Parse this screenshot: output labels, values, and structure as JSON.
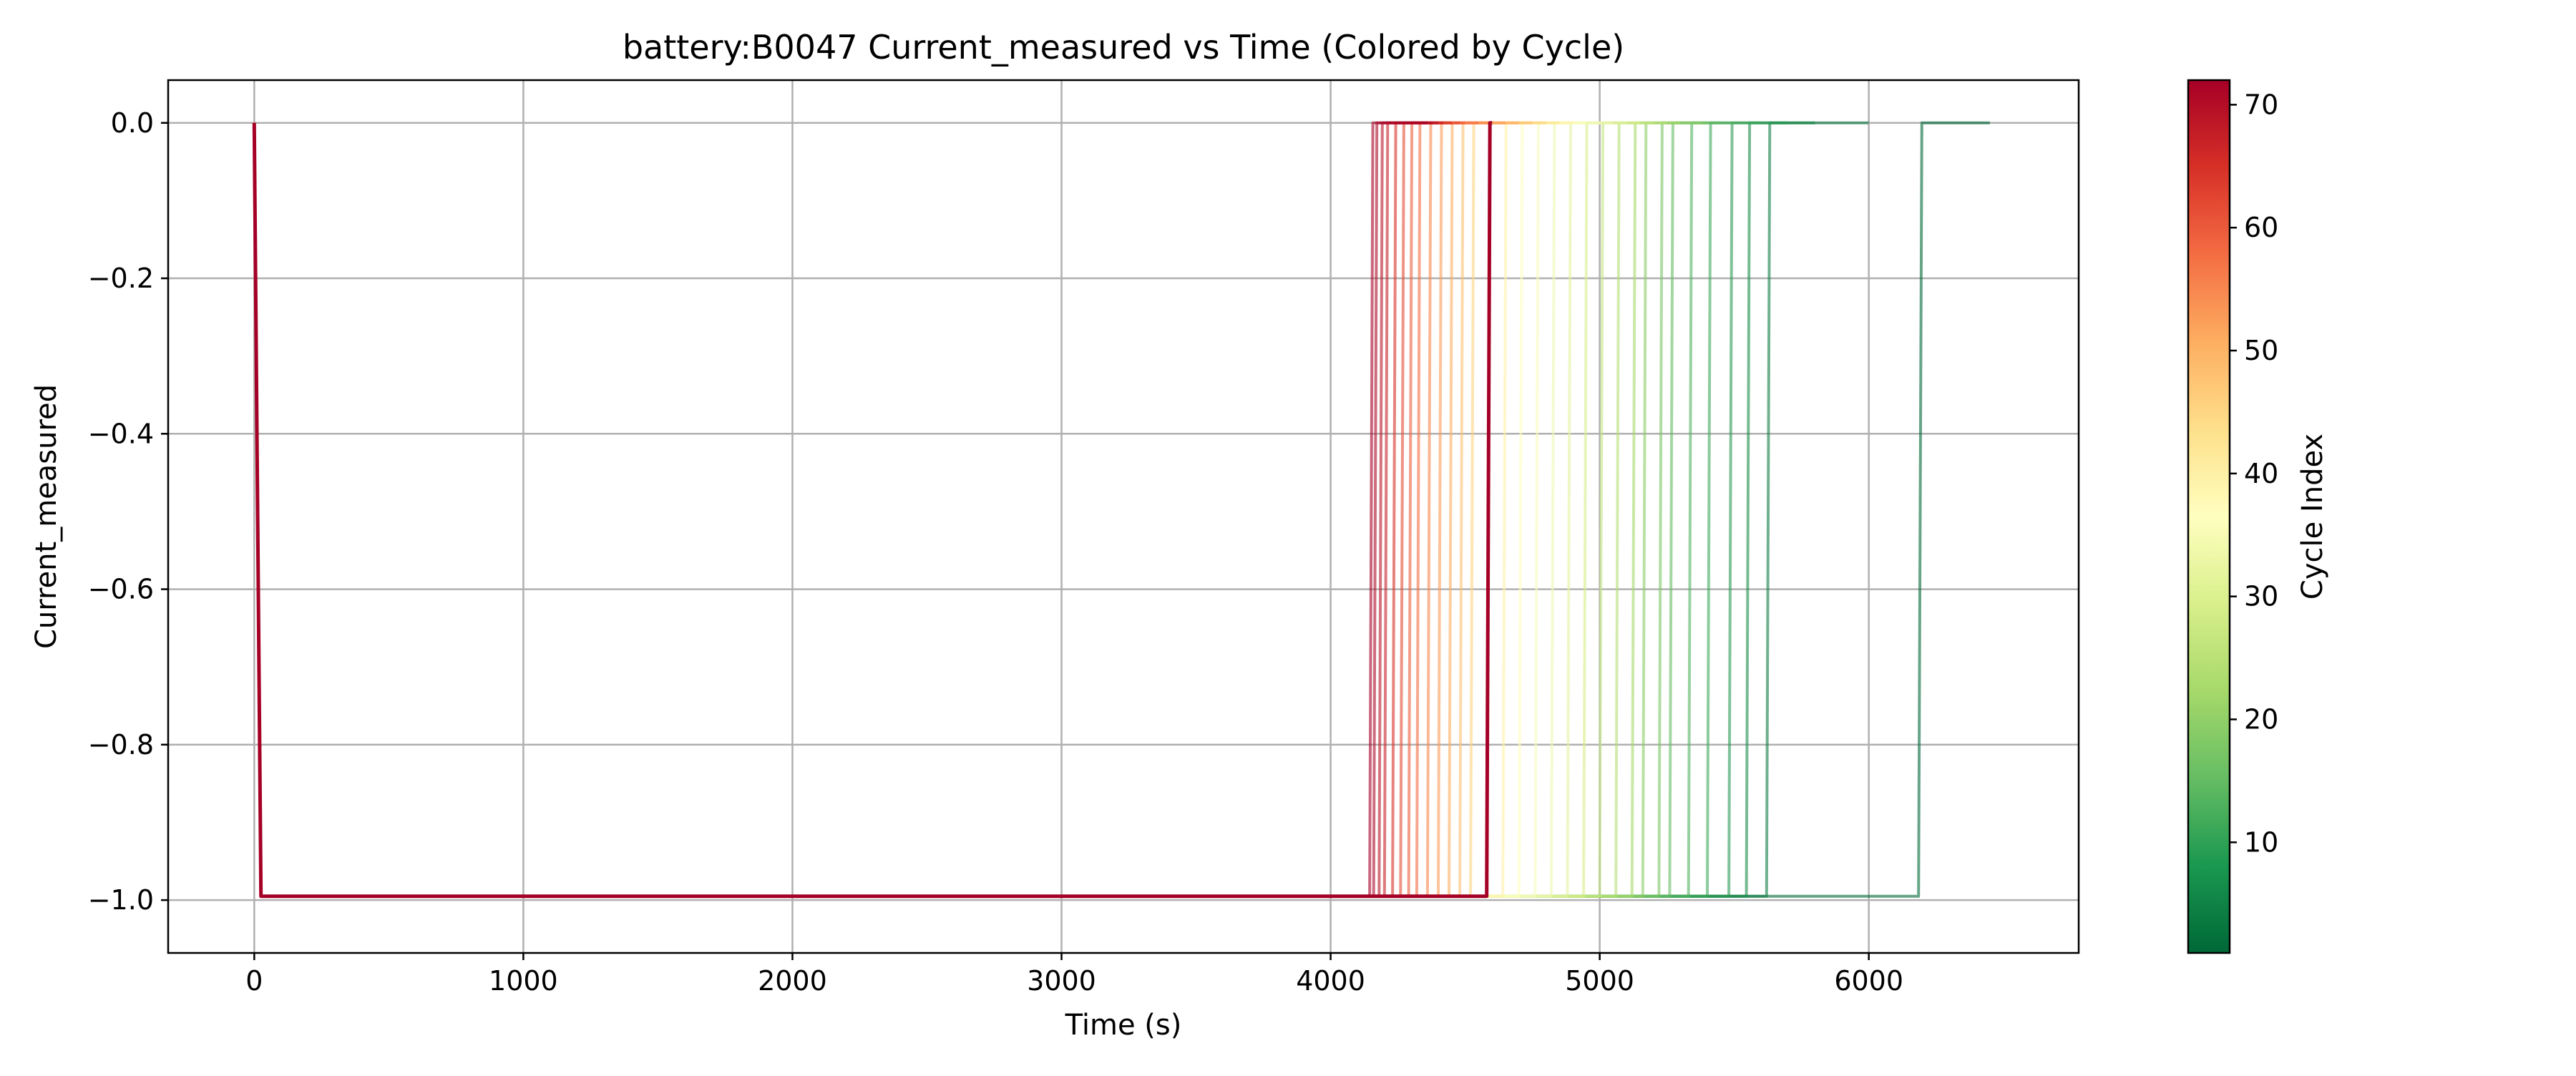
{
  "chart_data": {
    "type": "line",
    "title": "battery:B0047 Current_measured vs Time (Colored by Cycle)",
    "xlabel": "Time (s)",
    "ylabel": "Current_measured",
    "xlim": [
      -320,
      6780
    ],
    "ylim": [
      -1.068,
      0.055
    ],
    "x_ticks": [
      0,
      1000,
      2000,
      3000,
      4000,
      5000,
      6000
    ],
    "x_tick_labels": [
      "0",
      "1000",
      "2000",
      "3000",
      "4000",
      "5000",
      "6000"
    ],
    "y_ticks": [
      0.0,
      -0.2,
      -0.4,
      -0.6,
      -0.8,
      -1.0
    ],
    "y_tick_labels": [
      "0.0",
      "−0.2",
      "−0.4",
      "−0.6",
      "−0.8",
      "−1.0"
    ],
    "grid": true,
    "colormap": "RdYlGn_r",
    "colormap_stops": [
      "#006837",
      "#1a9850",
      "#66bd63",
      "#a6d96a",
      "#d9ef8b",
      "#ffffbf",
      "#fee08b",
      "#fdae61",
      "#f46d43",
      "#d73027",
      "#a50026"
    ],
    "colorbar": {
      "label": "Cycle Index",
      "range": [
        1,
        72
      ],
      "ticks": [
        10,
        20,
        30,
        40,
        50,
        60,
        70
      ],
      "tick_labels": [
        "10",
        "20",
        "30",
        "40",
        "50",
        "60",
        "70"
      ]
    },
    "series_profile": {
      "start_current": 0.0,
      "drop_time": 25,
      "discharge_current": -0.995,
      "rest_current": 0.0
    },
    "series": [
      {
        "cycle": 1,
        "end_time": 6450,
        "step_time": 6185,
        "color": "#006837"
      },
      {
        "cycle": 5,
        "end_time": 6000,
        "step_time": 5620,
        "color": "#0f7d42"
      },
      {
        "cycle": 8,
        "end_time": 5800,
        "step_time": 5545,
        "color": "#1a8c4a"
      },
      {
        "cycle": 11,
        "end_time": 5700,
        "step_time": 5480,
        "color": "#2a9a55"
      },
      {
        "cycle": 14,
        "end_time": 5600,
        "step_time": 5400,
        "color": "#3ea85a"
      },
      {
        "cycle": 17,
        "end_time": 5500,
        "step_time": 5330,
        "color": "#52b360"
      },
      {
        "cycle": 20,
        "end_time": 5450,
        "step_time": 5260,
        "color": "#66bd63"
      },
      {
        "cycle": 22,
        "end_time": 5400,
        "step_time": 5220,
        "color": "#79c566"
      },
      {
        "cycle": 24,
        "end_time": 5380,
        "step_time": 5160,
        "color": "#8ccd68"
      },
      {
        "cycle": 26,
        "end_time": 5300,
        "step_time": 5120,
        "color": "#a6d96a"
      },
      {
        "cycle": 28,
        "end_time": 5250,
        "step_time": 5060,
        "color": "#b5df76"
      },
      {
        "cycle": 30,
        "end_time": 5200,
        "step_time": 5000,
        "color": "#c5e683"
      },
      {
        "cycle": 32,
        "end_time": 5150,
        "step_time": 4940,
        "color": "#d9ef8b"
      },
      {
        "cycle": 34,
        "end_time": 5100,
        "step_time": 4880,
        "color": "#e3f3a0"
      },
      {
        "cycle": 36,
        "end_time": 5050,
        "step_time": 4820,
        "color": "#eef8b2"
      },
      {
        "cycle": 38,
        "end_time": 5000,
        "step_time": 4760,
        "color": "#f7fbbc"
      },
      {
        "cycle": 40,
        "end_time": 4950,
        "step_time": 4700,
        "color": "#ffffbf"
      },
      {
        "cycle": 42,
        "end_time": 4900,
        "step_time": 4640,
        "color": "#fff2a6"
      },
      {
        "cycle": 44,
        "end_time": 4850,
        "step_time": 4580,
        "color": "#fee590"
      },
      {
        "cycle": 46,
        "end_time": 4800,
        "step_time": 4520,
        "color": "#fed47f"
      },
      {
        "cycle": 48,
        "end_time": 4750,
        "step_time": 4480,
        "color": "#fdc06f"
      },
      {
        "cycle": 50,
        "end_time": 4700,
        "step_time": 4440,
        "color": "#fdae61"
      },
      {
        "cycle": 52,
        "end_time": 4650,
        "step_time": 4400,
        "color": "#fb9b57"
      },
      {
        "cycle": 54,
        "end_time": 4600,
        "step_time": 4360,
        "color": "#f8864d"
      },
      {
        "cycle": 56,
        "end_time": 4550,
        "step_time": 4320,
        "color": "#f46d43"
      },
      {
        "cycle": 58,
        "end_time": 4500,
        "step_time": 4290,
        "color": "#ec5d3b"
      },
      {
        "cycle": 60,
        "end_time": 4480,
        "step_time": 4260,
        "color": "#e34d33"
      },
      {
        "cycle": 62,
        "end_time": 4450,
        "step_time": 4230,
        "color": "#d73027"
      },
      {
        "cycle": 64,
        "end_time": 4420,
        "step_time": 4200,
        "color": "#c82227"
      },
      {
        "cycle": 66,
        "end_time": 4400,
        "step_time": 4180,
        "color": "#b81526"
      },
      {
        "cycle": 68,
        "end_time": 4380,
        "step_time": 4160,
        "color": "#ad0a26"
      },
      {
        "cycle": 70,
        "end_time": 4360,
        "step_time": 4145,
        "color": "#a50026"
      },
      {
        "cycle": 72,
        "end_time": 4600,
        "step_time": 4580,
        "color": "#a50026"
      }
    ]
  }
}
